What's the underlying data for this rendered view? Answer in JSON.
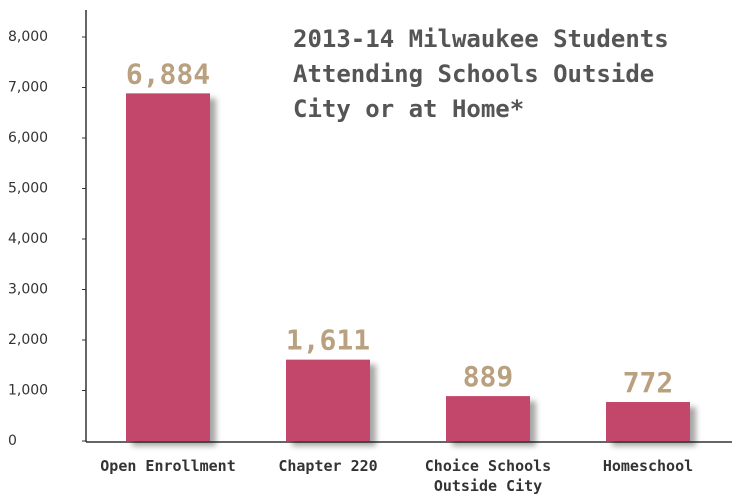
{
  "chart_data": {
    "type": "bar",
    "title": "2013-14 Milwaukee Students Attending Schools Outside City or at Home*",
    "categories": [
      "Open Enrollment",
      "Chapter 220",
      "Choice Schools Outside City",
      "Homeschool"
    ],
    "values": [
      6884,
      1611,
      889,
      772
    ],
    "value_labels": [
      "6,884",
      "1,611",
      "889",
      "772"
    ],
    "color": "#c2476b",
    "ylim": [
      0,
      8000
    ],
    "yticks": [
      0,
      {
        "value": 1000,
        "label": "1,000"
      },
      {
        "value": 2000,
        "label": "2,000"
      },
      {
        "value": 3000,
        "label": "3,000"
      },
      {
        "value": 4000,
        "label": "4,000"
      },
      {
        "value": 5000,
        "label": "5,000"
      },
      {
        "value": 6000,
        "label": "6,000"
      },
      {
        "value": 7000,
        "label": "7,000"
      },
      {
        "value": 8000,
        "label": "8,000"
      }
    ],
    "grid": false
  }
}
